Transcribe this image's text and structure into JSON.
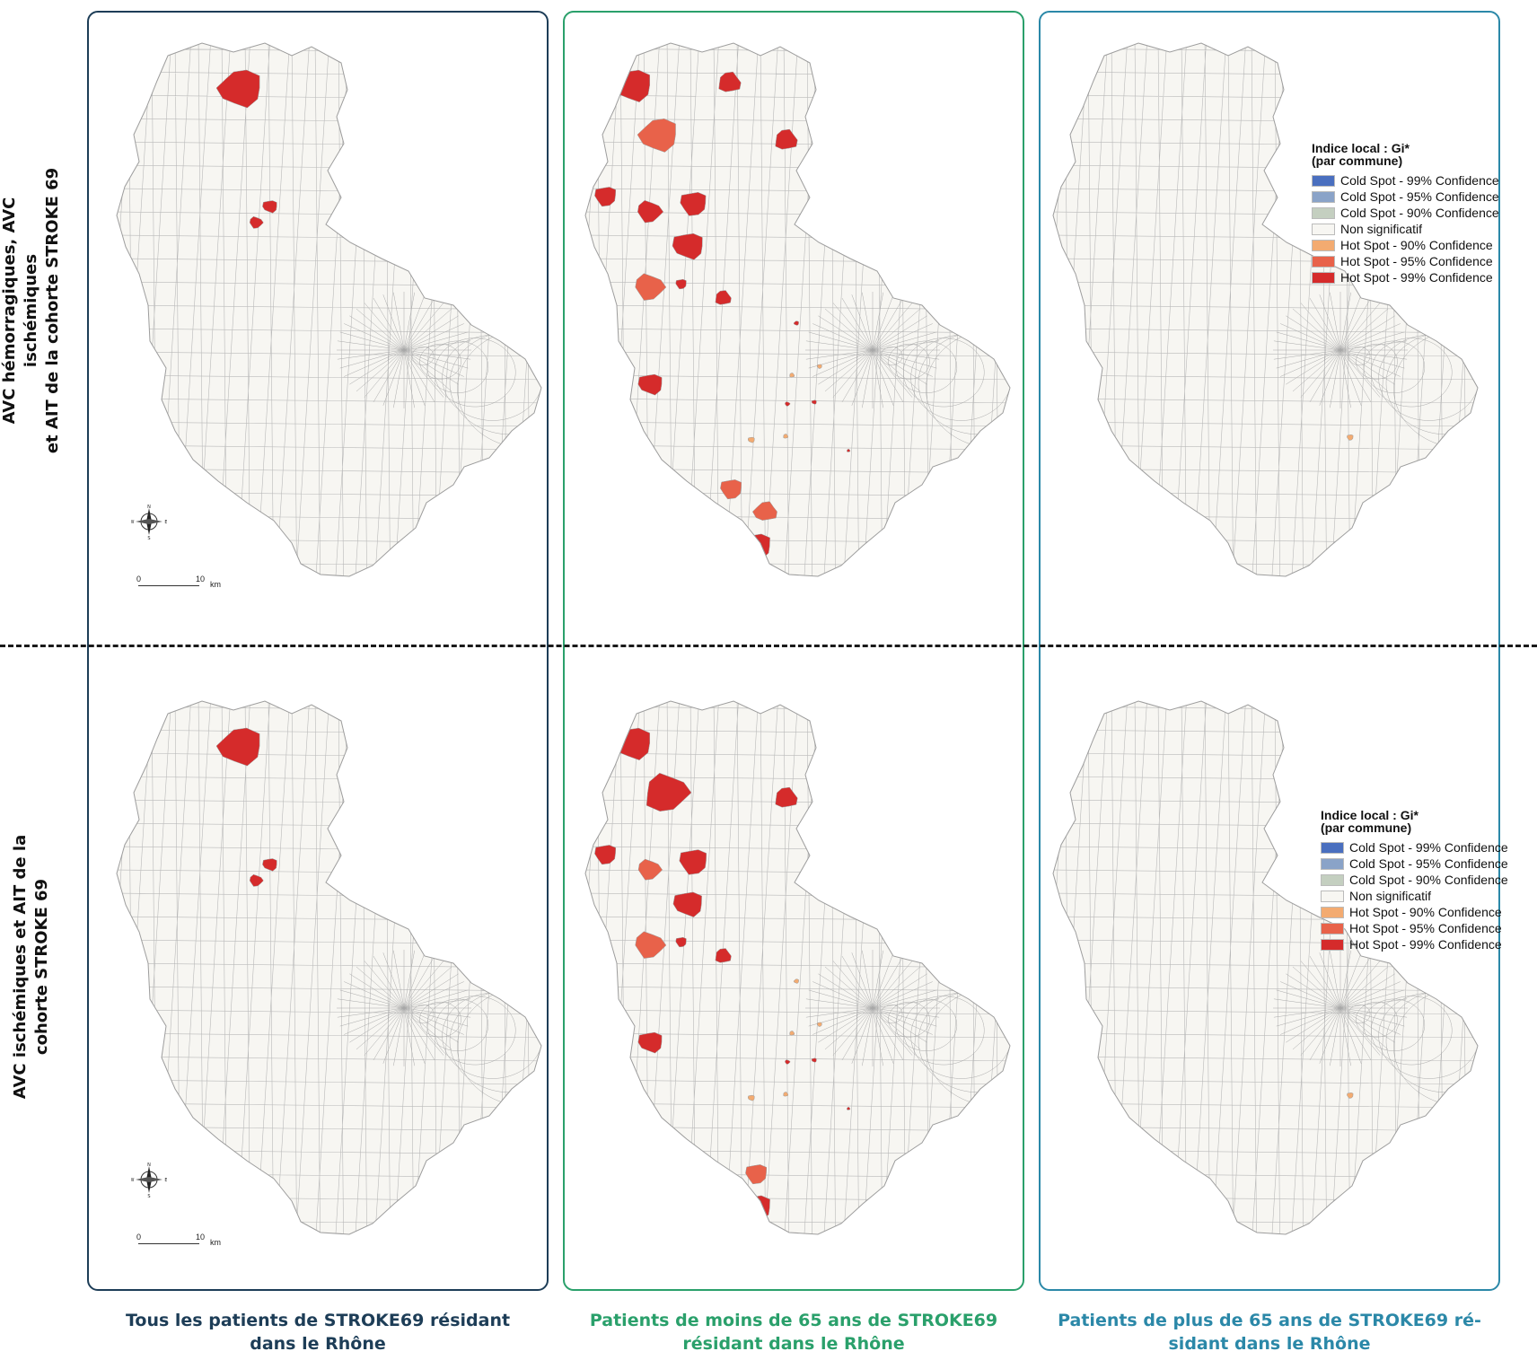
{
  "row_labels": [
    "AVC hémorragiques, AVC ischémiques\net AIT de la cohorte STROKE 69",
    "AVC ischémiques et AIT de la\ncohorte STROKE 69"
  ],
  "column_labels": [
    "Tous les patients de STROKE69 résidant\ndans le Rhône",
    "Patients de moins de 65 ans de STROKE69\nrésidant dans le Rhône",
    "Patients de plus de 65 ans de STROKE69 ré-\nsidant dans le Rhône"
  ],
  "legend": {
    "title": "Indice local : Gi*",
    "subtitle": "(par commune)",
    "items": [
      {
        "label": "Cold Spot - 99% Confidence",
        "color": "#4a6fbf"
      },
      {
        "label": "Cold Spot - 95% Confidence",
        "color": "#8aa3c8"
      },
      {
        "label": "Cold Spot - 90% Confidence",
        "color": "#c4cfc0"
      },
      {
        "label": "Non significatif",
        "color": "#f7f6f2"
      },
      {
        "label": "Hot Spot - 90% Confidence",
        "color": "#f3ab71"
      },
      {
        "label": "Hot Spot - 95% Confidence",
        "color": "#e8624a"
      },
      {
        "label": "Hot Spot - 99% Confidence",
        "color": "#d52b2b"
      }
    ]
  },
  "scale": {
    "zero": "0",
    "ten": "10",
    "unit": "km"
  },
  "compass_letters": {
    "n": "N",
    "s": "S",
    "e": "E",
    "w": "W"
  },
  "colors": {
    "base": "#f7f6f2",
    "commune_border": "#b9b9b9",
    "hot99": "#d52b2b",
    "hot95": "#e8624a",
    "hot90": "#f3ab71"
  }
}
